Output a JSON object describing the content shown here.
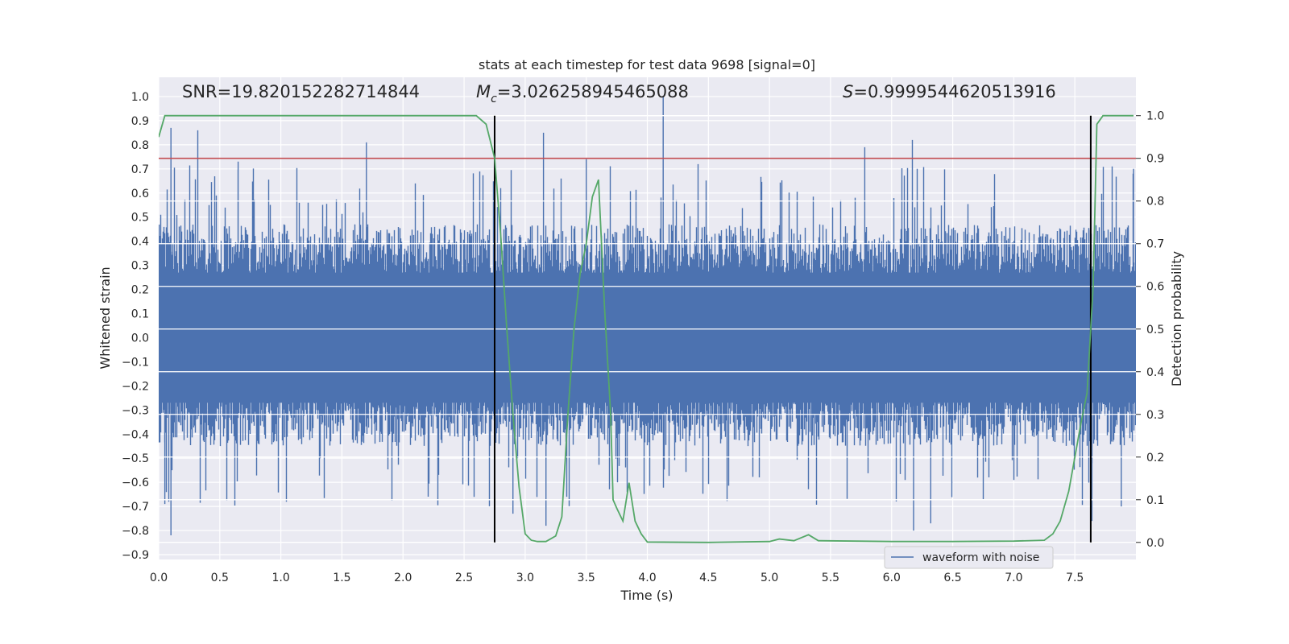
{
  "chart_data": {
    "type": "line",
    "title": "stats at each timestep for test data 9698 [signal=0]",
    "xlabel": "Time (s)",
    "ylabel": "Whitened strain",
    "y2label": "Detection probability",
    "xlim": [
      0.0,
      8.0
    ],
    "ylim": [
      -0.92,
      1.08
    ],
    "y2lim": [
      -0.04,
      1.09
    ],
    "xticks": [
      0.0,
      0.5,
      1.0,
      1.5,
      2.0,
      2.5,
      3.0,
      3.5,
      4.0,
      4.5,
      5.0,
      5.5,
      6.0,
      6.5,
      7.0,
      7.5
    ],
    "xtick_labels": [
      "0.0",
      "0.5",
      "1.0",
      "1.5",
      "2.0",
      "2.5",
      "3.0",
      "3.5",
      "4.0",
      "4.5",
      "5.0",
      "5.5",
      "6.0",
      "6.5",
      "7.0",
      "7.5"
    ],
    "yticks": [
      1.0,
      0.9,
      0.8,
      0.7,
      0.6,
      0.5,
      0.4,
      0.3,
      0.2,
      0.1,
      0.0,
      -0.1,
      -0.2,
      -0.3,
      -0.4,
      -0.5,
      -0.6,
      -0.7,
      -0.8,
      -0.9
    ],
    "ytick_labels": [
      "1.0",
      "0.9",
      "0.8",
      "0.7",
      "0.6",
      "0.5",
      "0.4",
      "0.3",
      "0.2",
      "0.1",
      "0.0",
      "−0.1",
      "−0.2",
      "−0.3",
      "−0.4",
      "−0.5",
      "−0.6",
      "−0.7",
      "−0.8",
      "−0.9"
    ],
    "y2ticks": [
      1.0,
      0.9,
      0.8,
      0.7,
      0.6,
      0.5,
      0.4,
      0.3,
      0.2,
      0.1,
      0.0
    ],
    "y2tick_labels": [
      "1.0",
      "0.9",
      "0.8",
      "0.7",
      "0.6",
      "0.5",
      "0.4",
      "0.3",
      "0.2",
      "0.1",
      "0.0"
    ],
    "grid": true,
    "legend": {
      "placement": "lower-right",
      "entries": [
        "waveform with noise"
      ]
    },
    "annotations": {
      "snr": "SNR=19.820152282714844",
      "mc_symbol": "M",
      "mc_sub": "c",
      "mc_value": "=3.026258945465088",
      "s_symbol": "S",
      "s_value": "=0.9999544620513916"
    },
    "threshold": {
      "axis": "right",
      "value": 0.9,
      "color": "#c44e52"
    },
    "vlines": {
      "x": [
        2.75,
        7.63
      ],
      "y2_range": [
        0.0,
        1.0
      ],
      "color": "#000000"
    },
    "waveform": {
      "name": "waveform with noise",
      "color": "#4c72b0",
      "t_range": [
        0.0,
        8.0
      ],
      "typical_extent": [
        -0.45,
        0.47
      ],
      "upper_peaks": [
        [
          0.1,
          0.87
        ],
        [
          0.32,
          0.86
        ],
        [
          0.65,
          0.73
        ],
        [
          1.7,
          0.81
        ],
        [
          3.15,
          0.85
        ],
        [
          3.5,
          0.74
        ],
        [
          4.13,
          1.0
        ],
        [
          5.78,
          0.79
        ],
        [
          6.17,
          0.82
        ],
        [
          7.98,
          0.7
        ]
      ],
      "lower_peaks": [
        [
          0.1,
          -0.82
        ],
        [
          0.05,
          -0.69
        ],
        [
          2.9,
          -0.73
        ],
        [
          3.17,
          -0.78
        ],
        [
          6.18,
          -0.8
        ],
        [
          6.32,
          -0.77
        ],
        [
          7.64,
          -0.76
        ],
        [
          7.88,
          -0.7
        ]
      ]
    },
    "series": [
      {
        "name": "detection probability",
        "axis": "right",
        "color": "#55a868",
        "x": [
          0.0,
          0.05,
          0.1,
          0.5,
          1.0,
          1.5,
          2.0,
          2.5,
          2.6,
          2.68,
          2.75,
          2.8,
          2.85,
          2.9,
          2.95,
          3.0,
          3.05,
          3.1,
          3.17,
          3.25,
          3.3,
          3.35,
          3.4,
          3.45,
          3.5,
          3.55,
          3.6,
          3.65,
          3.7,
          3.72,
          3.75,
          3.8,
          3.85,
          3.9,
          3.95,
          4.0,
          4.5,
          5.0,
          5.08,
          5.2,
          5.32,
          5.4,
          6.0,
          6.5,
          7.0,
          7.25,
          7.32,
          7.38,
          7.45,
          7.5,
          7.55,
          7.6,
          7.65,
          7.68,
          7.73,
          7.8,
          7.98
        ],
        "y": [
          0.95,
          1.0,
          1.0,
          1.0,
          1.0,
          1.0,
          1.0,
          1.0,
          1.0,
          0.98,
          0.9,
          0.72,
          0.5,
          0.3,
          0.13,
          0.02,
          0.005,
          0.002,
          0.002,
          0.015,
          0.06,
          0.3,
          0.5,
          0.63,
          0.7,
          0.81,
          0.85,
          0.55,
          0.3,
          0.1,
          0.08,
          0.05,
          0.14,
          0.05,
          0.02,
          0.001,
          0.0,
          0.002,
          0.008,
          0.004,
          0.018,
          0.004,
          0.002,
          0.002,
          0.003,
          0.005,
          0.02,
          0.05,
          0.12,
          0.2,
          0.28,
          0.35,
          0.6,
          0.98,
          1.0,
          1.0,
          1.0
        ]
      }
    ]
  }
}
